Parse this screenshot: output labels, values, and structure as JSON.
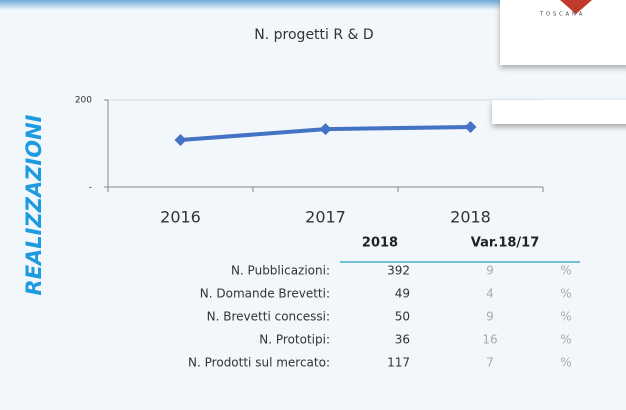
{
  "chart_data": {
    "type": "line",
    "title": "N. progetti R & D",
    "categories": [
      "2016",
      "2017",
      "2018"
    ],
    "values": [
      108,
      133,
      138
    ],
    "color": "#4472c4",
    "ylim": [
      0,
      200
    ],
    "yticks": [
      {
        "value": 0,
        "label": "-"
      },
      200
    ],
    "grid": true
  },
  "side_label": "REALIZZAZIONI",
  "logo_text": "TOSCANA",
  "table": {
    "header": [
      "2018",
      "Var.18/17"
    ],
    "rows": [
      [
        "N. Pubblicazioni:",
        "392",
        "9",
        "%"
      ],
      [
        "N. Domande Brevetti:",
        "49",
        "4",
        "%"
      ],
      [
        "N. Brevetti concessi:",
        "50",
        "9",
        "%"
      ],
      [
        "N. Prototipi:",
        "36",
        "16",
        "%"
      ],
      [
        "N. Prodotti sul mercato:",
        "117",
        "7",
        "%"
      ]
    ]
  }
}
